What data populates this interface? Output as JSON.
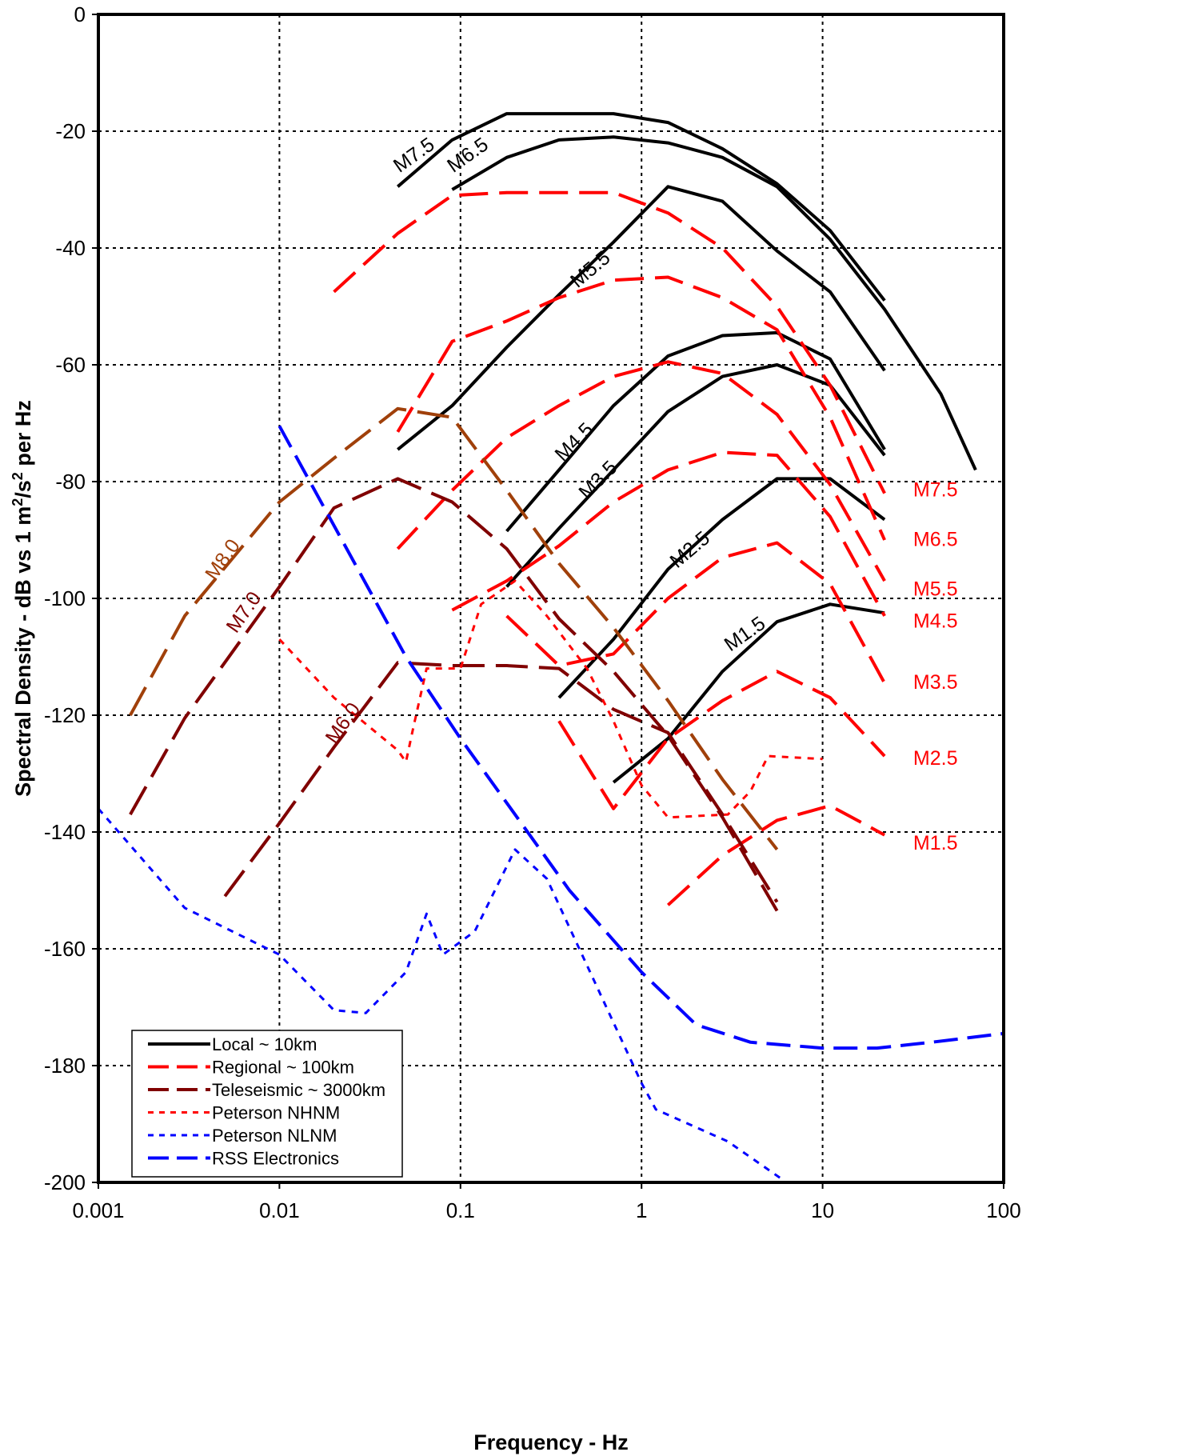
{
  "chart_data": {
    "type": "line",
    "xlabel": "Frequency - Hz",
    "ylabel_prefix": "Spectral Density - dB vs 1 m",
    "ylabel_sup1": "2",
    "ylabel_mid": "/s",
    "ylabel_sup2": "2",
    "ylabel_suffix": " per Hz",
    "x_scale": "log",
    "xlim": [
      0.001,
      100
    ],
    "ylim": [
      -200,
      0
    ],
    "x_ticks": [
      {
        "value": 0.001,
        "label": "0.001"
      },
      {
        "value": 0.01,
        "label": "0.01"
      },
      {
        "value": 0.1,
        "label": "0.1"
      },
      {
        "value": 1,
        "label": "1"
      },
      {
        "value": 10,
        "label": "10"
      },
      {
        "value": 100,
        "label": "100"
      }
    ],
    "y_ticks": [
      {
        "value": 0,
        "label": "0"
      },
      {
        "value": -20,
        "label": "-20"
      },
      {
        "value": -40,
        "label": "-40"
      },
      {
        "value": -60,
        "label": "-60"
      },
      {
        "value": -80,
        "label": "-80"
      },
      {
        "value": -100,
        "label": "-100"
      },
      {
        "value": -120,
        "label": "-120"
      },
      {
        "value": -140,
        "label": "-140"
      },
      {
        "value": -160,
        "label": "-160"
      },
      {
        "value": -180,
        "label": "-180"
      },
      {
        "value": -200,
        "label": "-200"
      }
    ],
    "grid": true,
    "legend_position": "bottom-left",
    "styles": {
      "local": {
        "color": "#000000",
        "dash": "",
        "width": 4
      },
      "regional": {
        "color": "#ff0000",
        "dash": "36,14",
        "width": 4
      },
      "tele": {
        "color": "#800000",
        "dash": "40,14",
        "width": 4
      },
      "tele_brown": {
        "color": "#a0400a",
        "dash": "40,14",
        "width": 4
      },
      "nhnm": {
        "color": "#ff0000",
        "dash": "8,8",
        "width": 3
      },
      "nlnm": {
        "color": "#0000ff",
        "dash": "8,8",
        "width": 3
      },
      "rss": {
        "color": "#0000ff",
        "dash": "30,12",
        "width": 4
      }
    },
    "legend": [
      {
        "label": "Local ~ 10km",
        "style": "local"
      },
      {
        "label": "Regional ~ 100km",
        "style": "regional"
      },
      {
        "label": "Teleseismic ~ 3000km",
        "style": "tele"
      },
      {
        "label": "Peterson NHNM",
        "style": "nhnm"
      },
      {
        "label": "Peterson NLNM",
        "style": "nlnm"
      },
      {
        "label": "RSS Electronics",
        "style": "rss"
      }
    ],
    "series": [
      {
        "group": "Local ~ 10km",
        "name": "M7.5",
        "style": "local",
        "x": [
          0.045,
          0.09,
          0.18,
          0.35,
          0.7,
          1.4,
          2.8,
          5.6,
          11,
          22
        ],
        "y": [
          -29.5,
          -21.5,
          -17,
          -17,
          -17,
          -18.5,
          -23,
          -29,
          -37,
          -49
        ]
      },
      {
        "group": "Local ~ 10km",
        "name": "M6.5",
        "style": "local",
        "x": [
          0.09,
          0.18,
          0.35,
          0.7,
          1.4,
          2.8,
          5.6,
          11,
          22,
          45,
          70
        ],
        "y": [
          -30,
          -24.5,
          -21.5,
          -21,
          -22,
          -24.5,
          -29.5,
          -38.5,
          -50.5,
          -65,
          -78
        ]
      },
      {
        "group": "Local ~ 10km",
        "name": "M5.5",
        "style": "local",
        "x": [
          0.045,
          0.09,
          0.18,
          0.35,
          0.7,
          1.4,
          2.8,
          5.6,
          11,
          22
        ],
        "y": [
          -74.5,
          -67,
          -57,
          -48,
          -39,
          -29.5,
          -32,
          -40.5,
          -47.5,
          -61
        ]
      },
      {
        "group": "Local ~ 10km",
        "name": "M4.5",
        "style": "local",
        "x": [
          0.18,
          0.35,
          0.7,
          1.4,
          2.8,
          5.6,
          11,
          22
        ],
        "y": [
          -88.5,
          -78,
          -67,
          -58.5,
          -55,
          -54.5,
          -59,
          -74.5
        ]
      },
      {
        "group": "Local ~ 10km",
        "name": "M3.5",
        "style": "local",
        "x": [
          0.18,
          0.35,
          0.7,
          1.4,
          2.8,
          5.6,
          11,
          22
        ],
        "y": [
          -98,
          -88,
          -78,
          -68,
          -62,
          -60,
          -63.5,
          -75.5
        ]
      },
      {
        "group": "Local ~ 10km",
        "name": "M2.5",
        "style": "local",
        "x": [
          0.35,
          0.7,
          1.4,
          2.8,
          5.6,
          11,
          22
        ],
        "y": [
          -117,
          -107,
          -95,
          -86.5,
          -79.5,
          -79.5,
          -86.5
        ]
      },
      {
        "group": "Local ~ 10km",
        "name": "M1.5",
        "style": "local",
        "x": [
          0.7,
          1.4,
          2.8,
          5.6,
          11,
          22
        ],
        "y": [
          -131.5,
          -124,
          -112.5,
          -104,
          -101,
          -102.5
        ]
      },
      {
        "group": "Regional ~ 100km",
        "name": "M7.5",
        "style": "regional",
        "x": [
          0.02,
          0.045,
          0.09,
          0.18,
          0.35,
          0.7,
          1.4,
          2.8,
          5.6,
          11,
          22
        ],
        "y": [
          -47.5,
          -37.5,
          -31,
          -30.5,
          -30.5,
          -30.5,
          -34,
          -40,
          -50,
          -63.5,
          -82
        ]
      },
      {
        "group": "Regional ~ 100km",
        "name": "M6.5",
        "style": "regional",
        "x": [
          0.045,
          0.09,
          0.18,
          0.35,
          0.7,
          1.4,
          2.8,
          5.6,
          11,
          22
        ],
        "y": [
          -71.5,
          -56,
          -52.5,
          -48.5,
          -45.5,
          -45,
          -48.5,
          -54,
          -69,
          -90
        ]
      },
      {
        "group": "Regional ~ 100km",
        "name": "M5.5",
        "style": "regional",
        "x": [
          0.045,
          0.09,
          0.18,
          0.35,
          0.7,
          1.4,
          2.8,
          5.6,
          11,
          22
        ],
        "y": [
          -91.5,
          -81.5,
          -72.5,
          -67,
          -62,
          -59.5,
          -61.5,
          -68.5,
          -80.5,
          -97
        ]
      },
      {
        "group": "Regional ~ 100km",
        "name": "M4.5",
        "style": "regional",
        "x": [
          0.09,
          0.18,
          0.35,
          0.7,
          1.4,
          2.8,
          5.6,
          11,
          22
        ],
        "y": [
          -102,
          -97,
          -91,
          -83.5,
          -78,
          -75,
          -75.5,
          -86,
          -103
        ]
      },
      {
        "group": "Regional ~ 100km",
        "name": "M3.5",
        "style": "regional",
        "x": [
          0.18,
          0.35,
          0.7,
          1.4,
          2.8,
          5.6,
          11,
          22
        ],
        "y": [
          -103,
          -111.5,
          -109.5,
          -100,
          -93,
          -90.5,
          -97.5,
          -114.5
        ]
      },
      {
        "group": "Regional ~ 100km",
        "name": "M2.5",
        "style": "regional",
        "x": [
          0.35,
          0.7,
          1.4,
          2.8,
          5.6,
          11,
          22
        ],
        "y": [
          -121,
          -136,
          -124,
          -117.5,
          -112.5,
          -117,
          -127
        ]
      },
      {
        "group": "Regional ~ 100km",
        "name": "M1.5",
        "style": "regional",
        "x": [
          1.4,
          2.8,
          5.6,
          11,
          22
        ],
        "y": [
          -152.5,
          -144,
          -138,
          -135.5,
          -140.5
        ]
      },
      {
        "group": "Teleseismic ~ 3000km",
        "name": "M8.0",
        "style": "tele_brown",
        "x": [
          0.0015,
          0.003,
          0.01,
          0.02,
          0.045,
          0.09,
          0.18,
          0.35,
          0.7,
          1.4,
          2.8,
          5.6
        ],
        "y": [
          -120,
          -103,
          -83.5,
          -76,
          -67.5,
          -69,
          -81.5,
          -94,
          -105,
          -117.5,
          -131,
          -143
        ]
      },
      {
        "group": "Teleseismic ~ 3000km",
        "name": "M7.0",
        "style": "tele",
        "x": [
          0.0015,
          0.003,
          0.01,
          0.02,
          0.045,
          0.09,
          0.18,
          0.35,
          0.7,
          1.4,
          2.8,
          5.6
        ],
        "y": [
          -137,
          -120.5,
          -98,
          -84.5,
          -79.5,
          -83.5,
          -91.5,
          -103.5,
          -112.5,
          -123.5,
          -137.5,
          -153.5
        ]
      },
      {
        "group": "Teleseismic ~ 3000km",
        "name": "M6.0",
        "style": "tele",
        "x": [
          0.005,
          0.01,
          0.02,
          0.045,
          0.09,
          0.18,
          0.35,
          0.7,
          1.4,
          2.8,
          5.6
        ],
        "y": [
          -151,
          -138.5,
          -125.5,
          -111,
          -111.5,
          -111.5,
          -112,
          -119,
          -123,
          -137,
          -152
        ]
      },
      {
        "group": "Peterson NHNM",
        "name": "Peterson NHNM",
        "style": "nhnm",
        "x": [
          0.01,
          0.02,
          0.045,
          0.05,
          0.055,
          0.065,
          0.1,
          0.13,
          0.2,
          0.3,
          0.5,
          0.7,
          1,
          1.4,
          3,
          4,
          5,
          10
        ],
        "y": [
          -107,
          -117,
          -126,
          -128,
          -122,
          -112,
          -112,
          -101,
          -97,
          -103,
          -112,
          -121,
          -132,
          -137.5,
          -137,
          -133,
          -127,
          -127.5
        ]
      },
      {
        "group": "Peterson NLNM",
        "name": "Peterson NLNM",
        "style": "nlnm",
        "x": [
          0.001,
          0.003,
          0.01,
          0.02,
          0.03,
          0.05,
          0.065,
          0.08,
          0.12,
          0.2,
          0.3,
          1,
          1.2,
          3,
          6
        ],
        "y": [
          -136,
          -153,
          -161,
          -170.5,
          -171,
          -164,
          -154,
          -161,
          -157,
          -143,
          -148,
          -183,
          -187.5,
          -193,
          -199.5
        ]
      },
      {
        "group": "RSS Electronics",
        "name": "RSS Electronics",
        "style": "rss",
        "x": [
          0.01,
          0.05,
          0.1,
          0.2,
          0.4,
          1,
          2,
          4,
          10,
          20,
          40,
          100
        ],
        "y": [
          -70.5,
          -110,
          -124,
          -137,
          -150,
          -164,
          -173,
          -176,
          -177,
          -177,
          -176,
          -174.5
        ]
      }
    ],
    "annotations": [
      {
        "text": "M7.5",
        "x": 0.058,
        "y": -25,
        "angle": -35,
        "color": "#000000"
      },
      {
        "text": "M6.5",
        "x": 0.115,
        "y": -25,
        "angle": -35,
        "color": "#000000"
      },
      {
        "text": "M5.5",
        "x": 0.55,
        "y": -44.5,
        "angle": -40,
        "color": "#000000"
      },
      {
        "text": "M4.5",
        "x": 0.45,
        "y": -74,
        "angle": -45,
        "color": "#000000"
      },
      {
        "text": "M3.5",
        "x": 0.61,
        "y": -80.5,
        "angle": -45,
        "color": "#000000"
      },
      {
        "text": "M2.5",
        "x": 1.95,
        "y": -92.5,
        "angle": -40,
        "color": "#000000"
      },
      {
        "text": "M1.5",
        "x": 3.9,
        "y": -107,
        "angle": -35,
        "color": "#000000"
      },
      {
        "text": "M8.0",
        "x": 0.0052,
        "y": -94,
        "angle": -55,
        "color": "#a0400a"
      },
      {
        "text": "M7.0",
        "x": 0.0068,
        "y": -103,
        "angle": -55,
        "color": "#800000"
      },
      {
        "text": "M6.0",
        "x": 0.024,
        "y": -122,
        "angle": -55,
        "color": "#800000"
      },
      {
        "text": "M7.5",
        "x": 42,
        "y": -82.5,
        "angle": 0,
        "color": "#ff0000"
      },
      {
        "text": "M6.5",
        "x": 42,
        "y": -91,
        "angle": 0,
        "color": "#ff0000"
      },
      {
        "text": "M5.5",
        "x": 42,
        "y": -99.5,
        "angle": 0,
        "color": "#ff0000"
      },
      {
        "text": "M4.5",
        "x": 42,
        "y": -105,
        "angle": 0,
        "color": "#ff0000"
      },
      {
        "text": "M3.5",
        "x": 42,
        "y": -115.5,
        "angle": 0,
        "color": "#ff0000"
      },
      {
        "text": "M2.5",
        "x": 42,
        "y": -128.5,
        "angle": 0,
        "color": "#ff0000"
      },
      {
        "text": "M1.5",
        "x": 42,
        "y": -143,
        "angle": 0,
        "color": "#ff0000"
      }
    ]
  }
}
